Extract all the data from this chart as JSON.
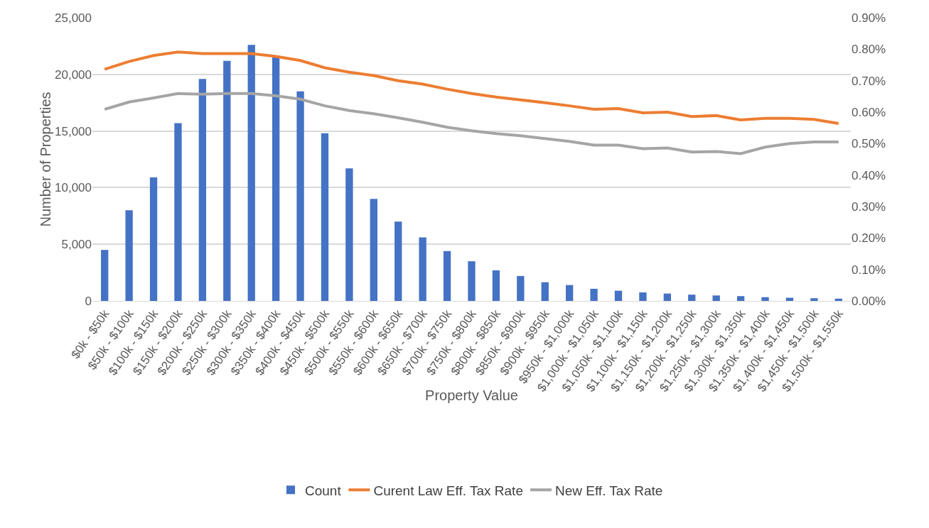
{
  "chart_data": {
    "type": "bar",
    "xlabel": "Property Value",
    "ylabel": "Number of Properties",
    "categories": [
      "$0k - $50k",
      "$50k - $100k",
      "$100k - $150k",
      "$150k - $200k",
      "$200k - $250k",
      "$250k - $300k",
      "$300k - $350k",
      "$350k - $400k",
      "$400k - $450k",
      "$450k - $500k",
      "$500k - $550k",
      "$550k - $600k",
      "$600k - $650k",
      "$650k - $700k",
      "$700k - $750k",
      "$750k - $800k",
      "$800k - $850k",
      "$850k - $900k",
      "$900k - $950k",
      "$950k - $1,000k",
      "$1,000k - $1,050k",
      "$1,050k - $1,100k",
      "$1,100k - $1,150k",
      "$1,150k - $1,200k",
      "$1,200k - $1,250k",
      "$1,250k - $1,300k",
      "$1,300k - $1,350k",
      "$1,350k - $1,400k",
      "$1,400k - $1,450k",
      "$1,450k - $1,500k",
      "$1,500k - $1,550k"
    ],
    "series": [
      {
        "name": "Count",
        "color": "#4472c4",
        "values": [
          4500,
          8000,
          10900,
          15700,
          19600,
          21200,
          22600,
          21500,
          18500,
          14800,
          11700,
          9000,
          7000,
          5600,
          4400,
          3500,
          2700,
          2200,
          1650,
          1400,
          1070,
          900,
          750,
          650,
          550,
          480,
          420,
          330,
          280,
          240,
          200
        ]
      },
      {
        "name": "Curent Law Eff. Tax Rate",
        "type": "line",
        "axis": "y2",
        "color": "#ed7d31",
        "values": [
          0.736,
          0.761,
          0.78,
          0.791,
          0.786,
          0.786,
          0.786,
          0.777,
          0.764,
          0.741,
          0.727,
          0.716,
          0.7,
          0.689,
          0.673,
          0.659,
          0.648,
          0.639,
          0.63,
          0.62,
          0.609,
          0.611,
          0.598,
          0.6,
          0.586,
          0.589,
          0.575,
          0.58,
          0.58,
          0.577,
          0.564
        ]
      },
      {
        "name": "New Eff. Tax Rate",
        "type": "line",
        "axis": "y2",
        "color": "#a5a5a5",
        "values": [
          0.609,
          0.632,
          0.645,
          0.659,
          0.657,
          0.659,
          0.659,
          0.652,
          0.641,
          0.62,
          0.605,
          0.595,
          0.582,
          0.568,
          0.552,
          0.541,
          0.532,
          0.525,
          0.516,
          0.507,
          0.495,
          0.495,
          0.484,
          0.486,
          0.473,
          0.475,
          0.468,
          0.489,
          0.5,
          0.505,
          0.505
        ]
      }
    ],
    "ylim": [
      0,
      25000
    ],
    "yticks": [
      {
        "value": 0,
        "label": "0"
      },
      {
        "value": 5000,
        "label": "5,000"
      },
      {
        "value": 10000,
        "label": "10,000"
      },
      {
        "value": 15000,
        "label": "15,000"
      },
      {
        "value": 20000,
        "label": "20,000"
      },
      {
        "value": 25000,
        "label": "25,000"
      }
    ],
    "y2lim": [
      0,
      0.9
    ],
    "y2ticks": [
      {
        "value": 0,
        "label": "0.00%"
      },
      {
        "value": 0.1,
        "label": "0.10%"
      },
      {
        "value": 0.2,
        "label": "0.20%"
      },
      {
        "value": 0.3,
        "label": "0.30%"
      },
      {
        "value": 0.4,
        "label": "0.40%"
      },
      {
        "value": 0.5,
        "label": "0.50%"
      },
      {
        "value": 0.6,
        "label": "0.60%"
      },
      {
        "value": 0.7,
        "label": "0.70%"
      },
      {
        "value": 0.8,
        "label": "0.80%"
      },
      {
        "value": 0.9,
        "label": "0.90%"
      }
    ],
    "grid": "y",
    "legend": "bottom",
    "marker": "none",
    "line_style": "solid"
  }
}
